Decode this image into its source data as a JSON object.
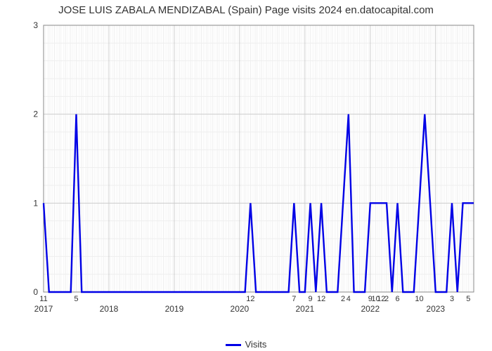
{
  "chart": {
    "type": "line",
    "title": "JOSE LUIS ZABALA MENDIZABAL (Spain) Page visits 2024 en.datocapital.com",
    "title_fontsize": 15,
    "title_color": "#333333",
    "background_color": "#ffffff",
    "plot_border_color": "#888888",
    "grid_major_color": "#cccccc",
    "grid_minor_color": "#eeeeee",
    "ylim": [
      0,
      3
    ],
    "ytick_step": 1,
    "y_minor_per_major": 4,
    "year_ticks": [
      "2017",
      "2018",
      "2019",
      "2020",
      "2021",
      "2022",
      "2023"
    ],
    "year_positions": [
      0,
      12,
      24,
      36,
      48,
      60,
      72
    ],
    "x_total_months": 80,
    "x_minor_per_month": 3,
    "series": {
      "label": "Visits",
      "color": "#0000e6",
      "line_width": 2.4,
      "values": [
        1,
        0,
        0,
        0,
        0,
        0,
        2,
        0,
        0,
        0,
        0,
        0,
        0,
        0,
        0,
        0,
        0,
        0,
        0,
        0,
        0,
        0,
        0,
        0,
        0,
        0,
        0,
        0,
        0,
        0,
        0,
        0,
        0,
        0,
        0,
        0,
        0,
        0,
        1,
        0,
        0,
        0,
        0,
        0,
        0,
        0,
        1,
        0,
        0,
        1,
        0,
        1,
        0,
        0,
        0,
        1,
        2,
        0,
        0,
        0,
        1,
        1,
        1,
        1,
        0,
        1,
        0,
        0,
        0,
        1,
        2,
        1,
        0,
        0,
        0,
        1,
        0,
        1,
        1,
        1
      ],
      "value_labels": [
        {
          "idx": 0,
          "label": "11"
        },
        {
          "idx": 6,
          "label": "5"
        },
        {
          "idx": 38,
          "label": "12"
        },
        {
          "idx": 46,
          "label": "7"
        },
        {
          "idx": 49,
          "label": "9"
        },
        {
          "idx": 51,
          "label": "12"
        },
        {
          "idx": 55,
          "label": "2"
        },
        {
          "idx": 56,
          "label": "4"
        },
        {
          "idx": 60,
          "label": "9"
        },
        {
          "idx": 61,
          "label": "10"
        },
        {
          "idx": 62,
          "label": "12"
        },
        {
          "idx": 63,
          "label": "2"
        },
        {
          "idx": 65,
          "label": "6"
        },
        {
          "idx": 69,
          "label": "10"
        },
        {
          "idx": 75,
          "label": "3"
        },
        {
          "idx": 78,
          "label": "5"
        }
      ]
    },
    "legend_swatch_width": 22,
    "axis_label_fontsize": 12,
    "axis_label_color": "#333333",
    "value_label_fontsize": 11,
    "value_label_color": "#333333"
  }
}
